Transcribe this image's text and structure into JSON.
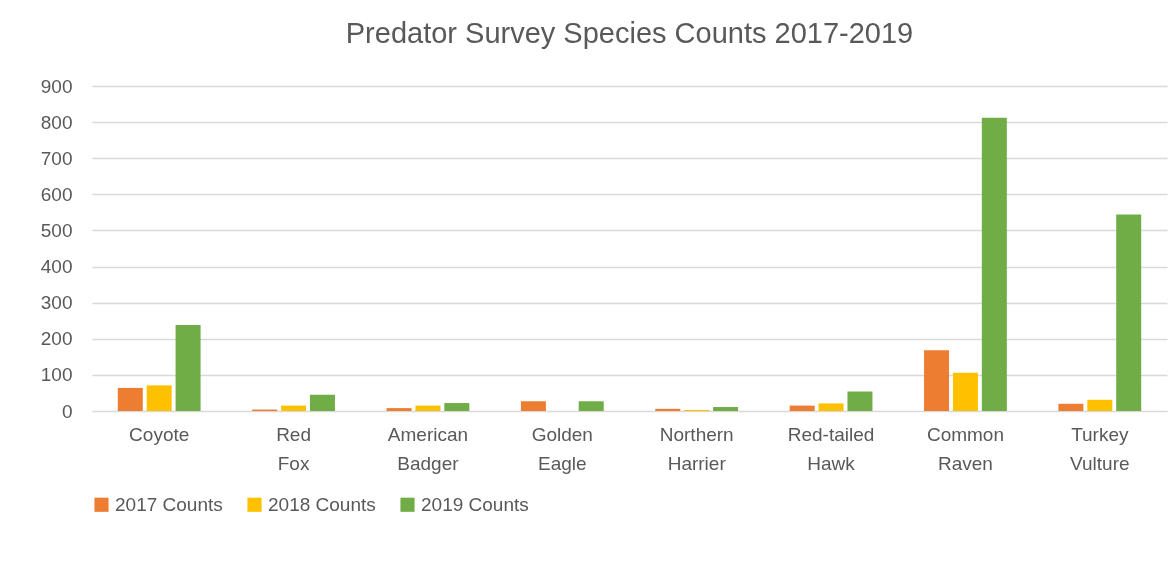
{
  "chart_data": {
    "type": "bar",
    "title": "Predator Survey Species Counts 2017-2019",
    "categories": [
      "Coyote",
      "Red Fox",
      "American Badger",
      "Golden Eagle",
      "Northern Harrier",
      "Red-tailed Hawk",
      "Common Raven",
      "Turkey Vulture"
    ],
    "series": [
      {
        "name": "2017 Counts",
        "color": "#ed7d31",
        "values": [
          64,
          4,
          8,
          27,
          6,
          15,
          168,
          20
        ]
      },
      {
        "name": "2018 Counts",
        "color": "#ffc000",
        "values": [
          71,
          15,
          15,
          0,
          3,
          21,
          106,
          31
        ]
      },
      {
        "name": "2019 Counts",
        "color": "#70ad47",
        "values": [
          238,
          45,
          22,
          27,
          11,
          54,
          812,
          544
        ]
      }
    ],
    "ylim": [
      0,
      900
    ],
    "yticks": [
      0,
      100,
      200,
      300,
      400,
      500,
      600,
      700,
      800,
      900
    ],
    "grid": "y",
    "legend": "bottom"
  }
}
